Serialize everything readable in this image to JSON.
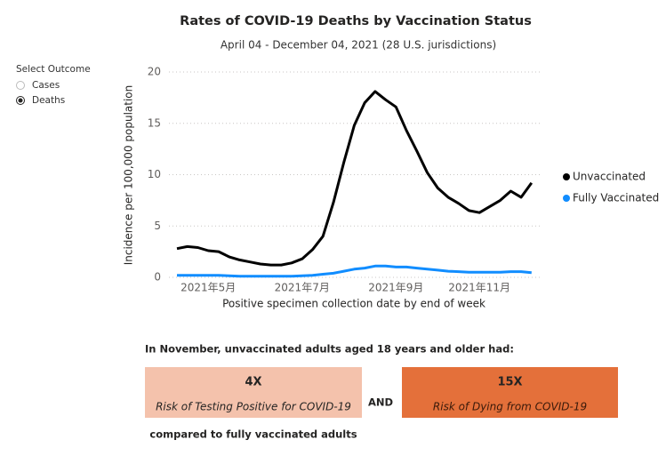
{
  "chart_data": {
    "type": "line",
    "title": "Rates of COVID-19 Deaths by Vaccination Status",
    "subtitle": "April 04 - December 04, 2021 (28 U.S. jurisdictions)",
    "y_label": "Incidence per 100,000 population",
    "x_label": "Positive specimen collection date by end of week",
    "categories": [
      null,
      null,
      null,
      "2021年5月",
      null,
      null,
      null,
      null,
      null,
      null,
      null,
      null,
      "2021年7月",
      null,
      null,
      null,
      null,
      null,
      null,
      null,
      null,
      "2021年9月",
      null,
      null,
      null,
      null,
      null,
      null,
      null,
      "2021年11月",
      null,
      null,
      null,
      null,
      null
    ],
    "series": [
      {
        "name": "Unvaccinated",
        "color": "#000000",
        "values": [
          2.8,
          3.0,
          2.9,
          2.6,
          2.5,
          2.0,
          1.7,
          1.5,
          1.3,
          1.2,
          1.2,
          1.4,
          1.8,
          2.7,
          4.0,
          7.3,
          11.2,
          14.8,
          17.0,
          18.1,
          17.3,
          16.6,
          14.3,
          12.3,
          10.2,
          8.7,
          7.8,
          7.2,
          6.5,
          6.3,
          6.9,
          7.5,
          8.4,
          7.8,
          9.2
        ]
      },
      {
        "name": "Fully Vaccinated",
        "color": "#118dff",
        "values": [
          0.2,
          0.2,
          0.2,
          0.2,
          0.2,
          0.15,
          0.1,
          0.1,
          0.1,
          0.1,
          0.1,
          0.1,
          0.15,
          0.2,
          0.3,
          0.4,
          0.6,
          0.8,
          0.9,
          1.1,
          1.1,
          1.0,
          1.0,
          0.9,
          0.8,
          0.7,
          0.6,
          0.55,
          0.5,
          0.5,
          0.5,
          0.5,
          0.55,
          0.55,
          0.45
        ]
      }
    ],
    "ylim": [
      0,
      20
    ],
    "yticks": [
      0,
      5,
      10,
      15,
      20
    ],
    "grid": true,
    "legend": "right"
  },
  "outcome_selector": {
    "label": "Select Outcome",
    "options": [
      "Cases",
      "Deaths"
    ],
    "selected": 1
  },
  "summary": {
    "heading": "In November, unvaccinated adults aged 18 years and older had:",
    "cards": [
      {
        "value": "4X",
        "text": "Risk of Testing Positive for COVID-19",
        "color": "#f4c2ac"
      },
      {
        "value": "15X",
        "text": "Risk of Dying from COVID-19",
        "color": "#e4703a"
      }
    ],
    "joiner": "AND",
    "footer": "compared to fully vaccinated adults"
  }
}
